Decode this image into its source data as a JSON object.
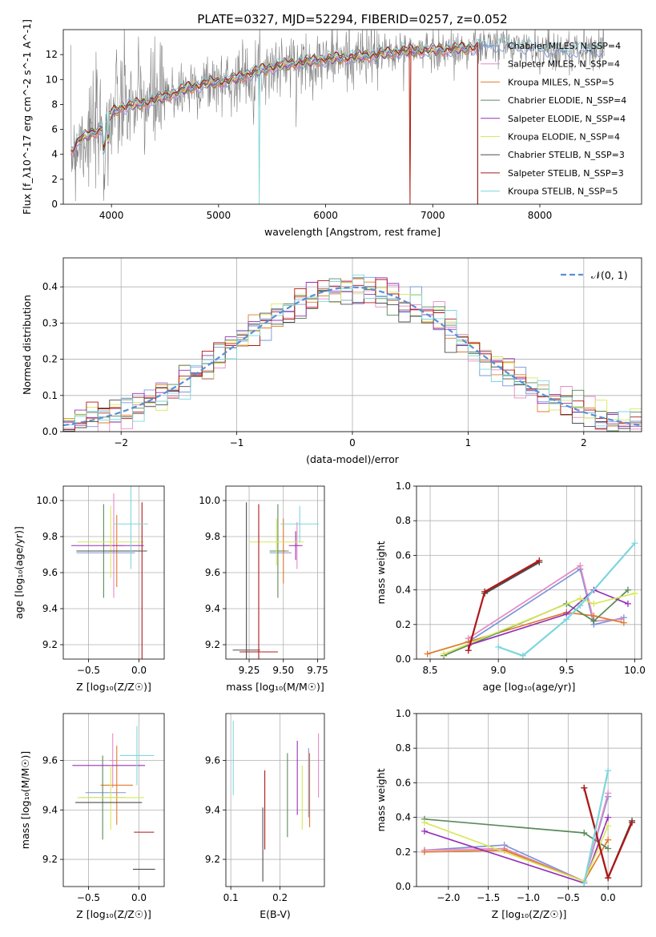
{
  "colors": {
    "Chabrier MILES": "#7b95d8",
    "Salpeter MILES": "#e58ac3",
    "Kroupa MILES": "#e07b2c",
    "Chabrier ELODIE": "#5b8a5b",
    "Salpeter ELODIE": "#9632b8",
    "Kroupa ELODIE": "#d7e85a",
    "Chabrier STELIB": "#4d4d4d",
    "Salpeter STELIB": "#b01818",
    "Kroupa STELIB": "#7dd6dc",
    "data": "#808080",
    "normal": "#5a8fd6"
  },
  "chart_data": [
    {
      "id": "spectrum",
      "type": "line",
      "title": "PLATE=0327, MJD=52294, FIBERID=0257, z=0.052",
      "xlabel": "wavelength [Angstrom, rest frame]",
      "ylabel": "Flux [f_λ10^-17 erg cm^-2 s^-1 A^-1]",
      "xlim": [
        3550,
        8950
      ],
      "ylim": [
        0,
        14
      ],
      "xticks": [
        "4000",
        "5000",
        "6000",
        "7000",
        "8000"
      ],
      "yticks": [
        "0",
        "2",
        "4",
        "6",
        "8",
        "10",
        "12"
      ],
      "legend": [
        "Chabrier MILES, N_SSP=4",
        "Salpeter MILES, N_SSP=4",
        "Kroupa MILES, N_SSP=5",
        "Chabrier ELODIE, N_SSP=4",
        "Salpeter ELODIE, N_SSP=4",
        "Kroupa ELODIE, N_SSP=4",
        "Chabrier STELIB, N_SSP=3",
        "Salpeter STELIB, N_SSP=3",
        "Kroupa STELIB, N_SSP=5"
      ],
      "legend_loc": "right",
      "continuum": [
        [
          3620,
          4.2
        ],
        [
          3700,
          5.2
        ],
        [
          3800,
          5.6
        ],
        [
          3900,
          6.0
        ],
        [
          4000,
          7.3
        ],
        [
          4100,
          7.8
        ],
        [
          4300,
          8.1
        ],
        [
          4500,
          8.6
        ],
        [
          4700,
          9.3
        ],
        [
          4900,
          9.7
        ],
        [
          5100,
          9.9
        ],
        [
          5300,
          10.5
        ],
        [
          5500,
          11.0
        ],
        [
          5700,
          11.3
        ],
        [
          5900,
          11.5
        ],
        [
          6100,
          11.7
        ],
        [
          6300,
          11.8
        ],
        [
          6500,
          12.0
        ],
        [
          6700,
          12.3
        ],
        [
          6900,
          12.3
        ],
        [
          7100,
          12.4
        ],
        [
          7300,
          12.5
        ],
        [
          7500,
          12.7
        ],
        [
          7700,
          12.8
        ],
        [
          7900,
          12.6
        ],
        [
          8100,
          12.4
        ],
        [
          8300,
          12.3
        ],
        [
          8500,
          12.5
        ],
        [
          8600,
          12.4
        ]
      ],
      "model_end": 7420,
      "drops": [
        5380,
        6790
      ]
    },
    {
      "id": "residual-hist",
      "type": "line",
      "xlabel": "(data-model)/error",
      "ylabel": "Normed distribution",
      "xlim": [
        -2.5,
        2.5
      ],
      "ylim": [
        0,
        0.48
      ],
      "xticks": [
        "−2",
        "−1",
        "0",
        "1",
        "2"
      ],
      "yticks": [
        "0.0",
        "0.1",
        "0.2",
        "0.3",
        "0.4"
      ],
      "legend": [
        "𝒩(0, 1)"
      ],
      "legend_loc": "top-right",
      "bin_width": 0.1
    },
    {
      "id": "age-vs-Z",
      "type": "scatter",
      "xlabel": "Z [log₁₀(Z/Z☉)]",
      "ylabel": "age  [log₁₀(age/yr)]",
      "xlim": [
        -0.75,
        0.25
      ],
      "ylim": [
        9.12,
        10.08
      ],
      "xticks": [
        "−0.5",
        "0.0"
      ],
      "yticks": [
        "9.2",
        "9.4",
        "9.6",
        "9.8",
        "10.0"
      ],
      "points": [
        {
          "m": "Chabrier MILES",
          "x": -0.33,
          "y": 9.71,
          "xe": 0.29,
          "ye": 0.0
        },
        {
          "m": "Salpeter MILES",
          "x": -0.25,
          "y": 9.75,
          "xe": 0.1,
          "ye": 0.29
        },
        {
          "m": "Kroupa MILES",
          "x": -0.22,
          "y": 9.72,
          "xe": 0.17,
          "ye": 0.2
        },
        {
          "m": "Chabrier ELODIE",
          "x": -0.35,
          "y": 9.72,
          "xe": 0.22,
          "ye": 0.26
        },
        {
          "m": "Salpeter ELODIE",
          "x": -0.31,
          "y": 9.75,
          "xe": 0.36,
          "ye": 0.0
        },
        {
          "m": "Kroupa ELODIE",
          "x": -0.28,
          "y": 9.77,
          "xe": 0.33,
          "ye": 0.2
        },
        {
          "m": "Chabrier STELIB",
          "x": -0.27,
          "y": 9.72,
          "xe": 0.35,
          "ye": 0.0
        },
        {
          "m": "Salpeter STELIB",
          "x": 0.03,
          "y": 9.17,
          "xe": 0.0,
          "ye": 0.82
        },
        {
          "m": "Kroupa STELIB",
          "x": -0.08,
          "y": 9.87,
          "xe": 0.17,
          "ye": 0.25
        }
      ]
    },
    {
      "id": "age-vs-mass",
      "type": "scatter",
      "xlabel": "mass [log₁₀(M/M☉)]",
      "ylabel": "",
      "xlim": [
        9.08,
        9.8
      ],
      "ylim": [
        9.12,
        10.08
      ],
      "xticks": [
        "9.25",
        "9.50",
        "9.75"
      ],
      "yticks": [
        "9.2",
        "9.4",
        "9.6",
        "9.8",
        "10.0"
      ],
      "points": [
        {
          "m": "Chabrier MILES",
          "x": 9.48,
          "y": 9.71,
          "xe": 0.08,
          "ye": 0.0
        },
        {
          "m": "Salpeter MILES",
          "x": 9.6,
          "y": 9.75,
          "xe": 0.02,
          "ye": 0.13
        },
        {
          "m": "Kroupa MILES",
          "x": 9.5,
          "y": 9.72,
          "xe": 0.04,
          "ye": 0.18
        },
        {
          "m": "Chabrier ELODIE",
          "x": 9.46,
          "y": 9.72,
          "xe": 0.06,
          "ye": 0.26
        },
        {
          "m": "Salpeter ELODIE",
          "x": 9.59,
          "y": 9.75,
          "xe": 0.05,
          "ye": 0.08
        },
        {
          "m": "Kroupa ELODIE",
          "x": 9.45,
          "y": 9.77,
          "xe": 0.2,
          "ye": 0.13
        },
        {
          "m": "Chabrier STELIB",
          "x": 9.23,
          "y": 9.17,
          "xe": 0.1,
          "ye": 0.82
        },
        {
          "m": "Salpeter STELIB",
          "x": 9.32,
          "y": 9.16,
          "xe": 0.14,
          "ye": 0.82
        },
        {
          "m": "Kroupa STELIB",
          "x": 9.62,
          "y": 9.87,
          "xe": 0.14,
          "ye": 0.1
        }
      ]
    },
    {
      "id": "weight-vs-age",
      "type": "line",
      "xlabel": "age  [log₁₀(age/yr)]",
      "ylabel": "mass weight",
      "xlim": [
        8.4,
        10.05
      ],
      "ylim": [
        0,
        1
      ],
      "xticks": [
        "8.5",
        "9.0",
        "9.5",
        "10.0"
      ],
      "yticks": [
        "0.0",
        "0.2",
        "0.4",
        "0.6",
        "0.8",
        "1.0"
      ],
      "series": [
        {
          "m": "Chabrier MILES",
          "x": [
            8.78,
            9.6,
            9.7,
            9.92
          ],
          "y": [
            0.1,
            0.52,
            0.2,
            0.24
          ]
        },
        {
          "m": "Salpeter MILES",
          "x": [
            8.78,
            9.6,
            9.7,
            9.9
          ],
          "y": [
            0.12,
            0.54,
            0.22,
            0.23
          ]
        },
        {
          "m": "Kroupa MILES",
          "x": [
            8.48,
            8.78,
            9.5,
            9.7,
            9.92
          ],
          "y": [
            0.03,
            0.1,
            0.27,
            0.25,
            0.21
          ]
        },
        {
          "m": "Chabrier ELODIE",
          "x": [
            8.6,
            9.5,
            9.7,
            9.95
          ],
          "y": [
            0.02,
            0.32,
            0.22,
            0.4
          ]
        },
        {
          "m": "Salpeter ELODIE",
          "x": [
            8.78,
            9.5,
            9.7,
            9.95
          ],
          "y": [
            0.08,
            0.26,
            0.4,
            0.32
          ]
        },
        {
          "m": "Kroupa ELODIE",
          "x": [
            8.6,
            9.6,
            9.7,
            10.0
          ],
          "y": [
            0.03,
            0.35,
            0.32,
            0.38
          ]
        },
        {
          "m": "Chabrier STELIB",
          "x": [
            8.9,
            9.3
          ],
          "y": [
            0.38,
            0.56
          ]
        },
        {
          "m": "Salpeter STELIB",
          "x": [
            8.78,
            8.9,
            9.3
          ],
          "y": [
            0.05,
            0.39,
            0.57
          ]
        },
        {
          "m": "Kroupa STELIB",
          "x": [
            9.0,
            9.18,
            9.5,
            9.6,
            10.0
          ],
          "y": [
            0.07,
            0.02,
            0.23,
            0.31,
            0.67
          ]
        }
      ]
    },
    {
      "id": "mass-vs-Z",
      "type": "scatter",
      "xlabel": "Z [log₁₀(Z/Z☉)]",
      "ylabel": "mass [log₁₀(M/M☉)]",
      "xlim": [
        -0.75,
        0.25
      ],
      "ylim": [
        9.09,
        9.79
      ],
      "xticks": [
        "−0.5",
        "0.0"
      ],
      "yticks": [
        "9.2",
        "9.4",
        "9.6"
      ],
      "points": [
        {
          "m": "Chabrier MILES",
          "x": -0.33,
          "y": 9.47,
          "xe": 0.2,
          "ye": 0.0
        },
        {
          "m": "Salpeter MILES",
          "x": -0.26,
          "y": 9.6,
          "xe": 0.03,
          "ye": 0.11
        },
        {
          "m": "Kroupa MILES",
          "x": -0.22,
          "y": 9.5,
          "xe": 0.16,
          "ye": 0.16
        },
        {
          "m": "Chabrier ELODIE",
          "x": -0.36,
          "y": 9.45,
          "xe": 0.22,
          "ye": 0.17
        },
        {
          "m": "Salpeter ELODIE",
          "x": -0.3,
          "y": 9.58,
          "xe": 0.36,
          "ye": 0.0
        },
        {
          "m": "Kroupa ELODIE",
          "x": -0.28,
          "y": 9.45,
          "xe": 0.33,
          "ye": 0.13
        },
        {
          "m": "Chabrier STELIB",
          "x": -0.3,
          "y": 9.43,
          "xe": 0.33,
          "ye": 0.0
        },
        {
          "m": "Chabrier STELIB",
          "x": 0.05,
          "y": 9.16,
          "xe": 0.11,
          "ye": 0.0
        },
        {
          "m": "Salpeter STELIB",
          "x": 0.05,
          "y": 9.31,
          "xe": 0.1,
          "ye": 0.0
        },
        {
          "m": "Kroupa STELIB",
          "x": -0.02,
          "y": 9.62,
          "xe": 0.17,
          "ye": 0.12
        }
      ]
    },
    {
      "id": "mass-vs-ebv",
      "type": "scatter",
      "xlabel": "E(B-V)",
      "ylabel": "",
      "xlim": [
        0.09,
        0.29
      ],
      "ylim": [
        9.09,
        9.79
      ],
      "xticks": [
        "0.1",
        "0.2"
      ],
      "yticks": [
        "9.2",
        "9.4",
        "9.6"
      ],
      "points": [
        {
          "m": "Kroupa STELIB",
          "x": 0.105,
          "y": 9.61,
          "xe": 0,
          "ye": 0.15
        },
        {
          "m": "Chabrier STELIB",
          "x": 0.165,
          "y": 9.26,
          "xe": 0,
          "ye": 0.15
        },
        {
          "m": "Salpeter STELIB",
          "x": 0.169,
          "y": 9.4,
          "xe": 0,
          "ye": 0.16
        },
        {
          "m": "Chabrier ELODIE",
          "x": 0.215,
          "y": 9.46,
          "xe": 0,
          "ye": 0.17
        },
        {
          "m": "Salpeter ELODIE",
          "x": 0.235,
          "y": 9.53,
          "xe": 0,
          "ye": 0.15
        },
        {
          "m": "Kroupa ELODIE",
          "x": 0.245,
          "y": 9.45,
          "xe": 0,
          "ye": 0.13
        },
        {
          "m": "Chabrier MILES",
          "x": 0.258,
          "y": 9.51,
          "xe": 0,
          "ye": 0.14
        },
        {
          "m": "Kroupa MILES",
          "x": 0.26,
          "y": 9.48,
          "xe": 0,
          "ye": 0.15
        },
        {
          "m": "Salpeter MILES",
          "x": 0.278,
          "y": 9.58,
          "xe": 0,
          "ye": 0.13
        }
      ]
    },
    {
      "id": "weight-vs-Z",
      "type": "line",
      "xlabel": "Z [log₁₀(Z/Z☉)]",
      "ylabel": "mass weight",
      "xlim": [
        -2.4,
        0.42
      ],
      "ylim": [
        0,
        1
      ],
      "xticks": [
        "−2.0",
        "−1.5",
        "−1.0",
        "−0.5",
        "0.0"
      ],
      "yticks": [
        "0.0",
        "0.2",
        "0.4",
        "0.6",
        "0.8",
        "1.0"
      ],
      "series": [
        {
          "m": "Chabrier MILES",
          "x": [
            -2.3,
            -1.3,
            -0.3,
            0.0
          ],
          "y": [
            0.21,
            0.24,
            0.03,
            0.52
          ]
        },
        {
          "m": "Salpeter MILES",
          "x": [
            -2.3,
            -1.3,
            -0.3,
            0.0
          ],
          "y": [
            0.21,
            0.22,
            0.03,
            0.54
          ]
        },
        {
          "m": "Kroupa MILES",
          "x": [
            -2.3,
            -1.3,
            -0.3,
            0.0
          ],
          "y": [
            0.2,
            0.21,
            0.03,
            0.27
          ]
        },
        {
          "m": "Chabrier ELODIE",
          "x": [
            -2.3,
            -0.3,
            0.0
          ],
          "y": [
            0.39,
            0.31,
            0.22
          ]
        },
        {
          "m": "Salpeter ELODIE",
          "x": [
            -2.3,
            -0.3,
            0.0
          ],
          "y": [
            0.32,
            0.02,
            0.4
          ]
        },
        {
          "m": "Kroupa ELODIE",
          "x": [
            -2.3,
            -0.3,
            0.0
          ],
          "y": [
            0.37,
            0.03,
            0.35
          ]
        },
        {
          "m": "Chabrier STELIB",
          "x": [
            -0.3,
            0.0,
            0.3
          ],
          "y": [
            0.57,
            0.05,
            0.38
          ]
        },
        {
          "m": "Salpeter STELIB",
          "x": [
            -0.3,
            0.0,
            0.3
          ],
          "y": [
            0.57,
            0.05,
            0.37
          ]
        },
        {
          "m": "Kroupa STELIB",
          "x": [
            -0.3,
            0.0
          ],
          "y": [
            0.02,
            0.67
          ]
        }
      ]
    }
  ]
}
